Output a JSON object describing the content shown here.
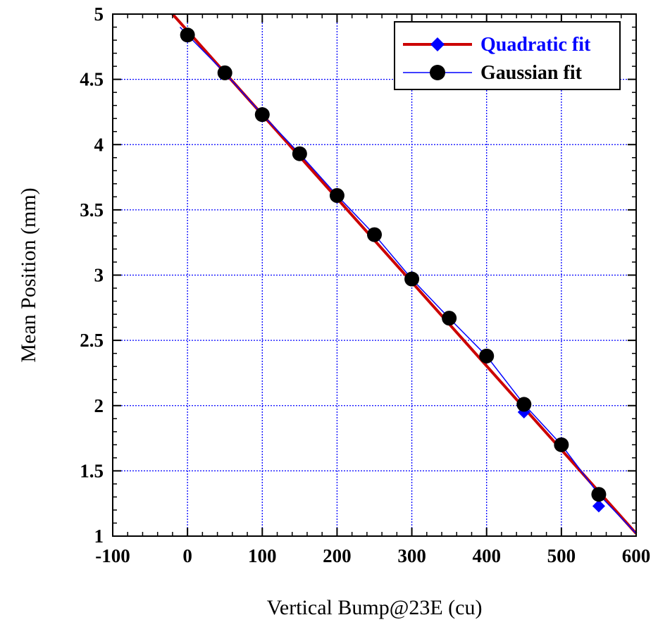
{
  "chart_data": {
    "type": "scatter",
    "xlabel": "Vertical Bump@23E (cu)",
    "ylabel": "Mean Position (mm)",
    "xlim": [
      -100,
      600
    ],
    "ylim": [
      1,
      5
    ],
    "x_ticks": [
      "-100",
      "0",
      "100",
      "200",
      "300",
      "400",
      "500",
      "600"
    ],
    "y_ticks": [
      "1",
      "1.5",
      "2",
      "2.5",
      "3",
      "3.5",
      "4",
      "4.5",
      "5"
    ],
    "grid": true,
    "legend_position": "top-right",
    "series": [
      {
        "name": "Quadratic fit",
        "color": "#0000ff",
        "fit_color": "#cc0000",
        "marker": "diamond",
        "x": [
          0,
          50,
          100,
          150,
          200,
          250,
          300,
          350,
          400,
          450,
          500,
          550
        ],
        "y": [
          4.84,
          4.55,
          4.24,
          3.93,
          3.62,
          3.31,
          2.97,
          2.67,
          2.37,
          1.95,
          1.7,
          1.23
        ]
      },
      {
        "name": "Gaussian fit",
        "color": "#0000ff",
        "marker": "circle",
        "marker_color": "#000000",
        "x": [
          0,
          50,
          100,
          150,
          200,
          250,
          300,
          350,
          400,
          450,
          500,
          550
        ],
        "y": [
          4.84,
          4.55,
          4.23,
          3.93,
          3.61,
          3.31,
          2.97,
          2.67,
          2.38,
          2.01,
          1.7,
          1.32
        ]
      }
    ],
    "fit_line": {
      "x": [
        -20,
        600
      ],
      "y": [
        5.0,
        1.02
      ]
    }
  }
}
